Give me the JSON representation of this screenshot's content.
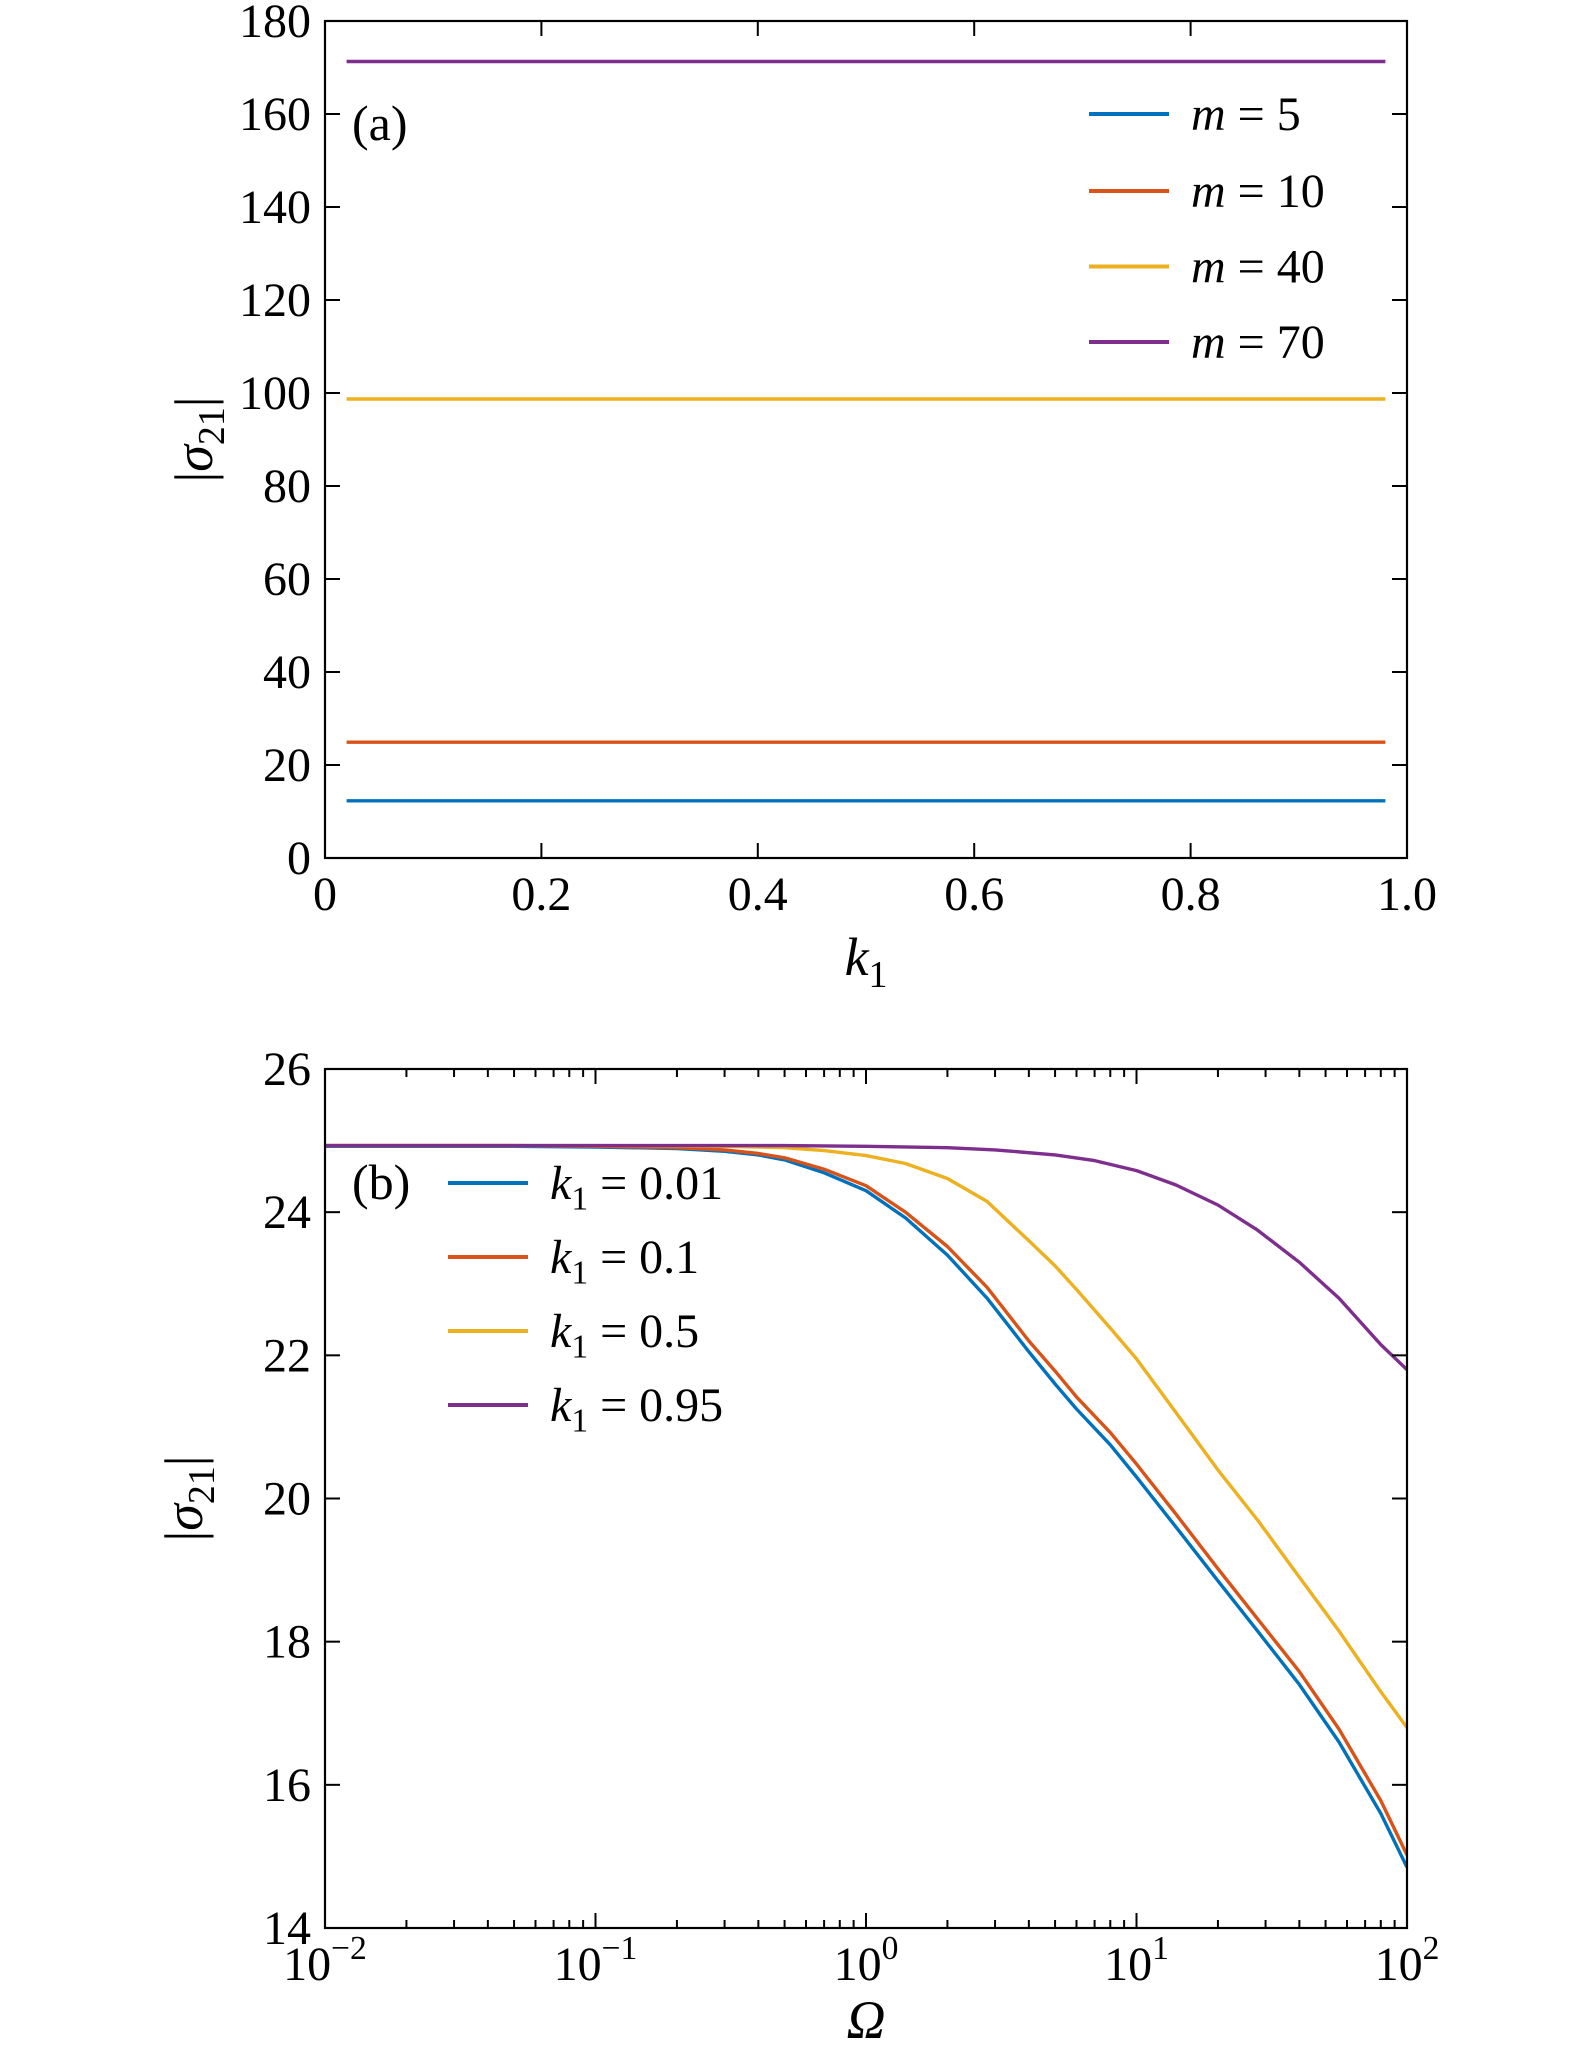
{
  "page": {
    "background": "#ffffff"
  },
  "chart_data": [
    {
      "id": "a",
      "type": "line",
      "panel_label": "(a)",
      "x_axis": {
        "scale": "linear",
        "min": 0,
        "max": 1.0,
        "ticks": [
          {
            "v": 0,
            "label": "0"
          },
          {
            "v": 0.2,
            "label": "0.2"
          },
          {
            "v": 0.4,
            "label": "0.4"
          },
          {
            "v": 0.6,
            "label": "0.6"
          },
          {
            "v": 0.8,
            "label": "0.8"
          },
          {
            "v": 1.0,
            "label": "1.0"
          }
        ],
        "label_parts": [
          {
            "t": "k",
            "i": 1
          },
          {
            "t": "1",
            "sub": 1
          }
        ]
      },
      "y_axis": {
        "scale": "linear",
        "min": 0,
        "max": 180,
        "ticks": [
          {
            "v": 0,
            "label": "0"
          },
          {
            "v": 20,
            "label": "20"
          },
          {
            "v": 40,
            "label": "40"
          },
          {
            "v": 60,
            "label": "60"
          },
          {
            "v": 80,
            "label": "80"
          },
          {
            "v": 100,
            "label": "100"
          },
          {
            "v": 120,
            "label": "120"
          },
          {
            "v": 140,
            "label": "140"
          },
          {
            "v": 160,
            "label": "160"
          },
          {
            "v": 180,
            "label": "180"
          }
        ],
        "label_parts": [
          {
            "t": "|"
          },
          {
            "t": "σ",
            "i": 1
          },
          {
            "t": "21",
            "sub": 1
          },
          {
            "t": "|"
          }
        ]
      },
      "grid": false,
      "legend": {
        "anchor": "inside-top-right"
      },
      "series": [
        {
          "label_parts": [
            {
              "t": "m",
              "i": 1
            },
            {
              "t": " = 5"
            }
          ],
          "color": "#0072BD",
          "points": [
            [
              0.02,
              12.3
            ],
            [
              0.98,
              12.3
            ]
          ]
        },
        {
          "label_parts": [
            {
              "t": "m",
              "i": 1
            },
            {
              "t": " = 10"
            }
          ],
          "color": "#D95319",
          "points": [
            [
              0.02,
              24.9
            ],
            [
              0.98,
              24.9
            ]
          ]
        },
        {
          "label_parts": [
            {
              "t": "m",
              "i": 1
            },
            {
              "t": " = 40"
            }
          ],
          "color": "#EDB120",
          "points": [
            [
              0.02,
              98.7
            ],
            [
              0.98,
              98.7
            ]
          ]
        },
        {
          "label_parts": [
            {
              "t": "m",
              "i": 1
            },
            {
              "t": " = 70"
            }
          ],
          "color": "#7E2F8E",
          "points": [
            [
              0.02,
              171.3
            ],
            [
              0.98,
              171.3
            ]
          ]
        }
      ]
    },
    {
      "id": "b",
      "type": "line",
      "panel_label": "(b)",
      "x_axis": {
        "scale": "log",
        "min": 0.01,
        "max": 100,
        "ticks": [
          {
            "v": 0.01,
            "label_parts": [
              {
                "t": "10"
              },
              {
                "t": "−2",
                "sup": 1
              }
            ]
          },
          {
            "v": 0.1,
            "label_parts": [
              {
                "t": "10"
              },
              {
                "t": "−1",
                "sup": 1
              }
            ]
          },
          {
            "v": 1,
            "label_parts": [
              {
                "t": "10"
              },
              {
                "t": "0",
                "sup": 1
              }
            ]
          },
          {
            "v": 10,
            "label_parts": [
              {
                "t": "10"
              },
              {
                "t": "1",
                "sup": 1
              }
            ]
          },
          {
            "v": 100,
            "label_parts": [
              {
                "t": "10"
              },
              {
                "t": "2",
                "sup": 1
              }
            ]
          }
        ],
        "label_parts": [
          {
            "t": "Ω",
            "i": 1
          }
        ]
      },
      "y_axis": {
        "scale": "linear",
        "min": 14,
        "max": 26,
        "ticks": [
          {
            "v": 14,
            "label": "14"
          },
          {
            "v": 16,
            "label": "16"
          },
          {
            "v": 18,
            "label": "18"
          },
          {
            "v": 20,
            "label": "20"
          },
          {
            "v": 22,
            "label": "22"
          },
          {
            "v": 24,
            "label": "24"
          },
          {
            "v": 26,
            "label": "26"
          }
        ],
        "label_parts": [
          {
            "t": "|"
          },
          {
            "t": "σ",
            "i": 1
          },
          {
            "t": "21",
            "sub": 1
          },
          {
            "t": "|"
          }
        ]
      },
      "grid": false,
      "legend": {
        "anchor": "inside-top-left"
      },
      "series": [
        {
          "label_parts": [
            {
              "t": "k",
              "i": 1
            },
            {
              "t": "1",
              "sub": 1
            },
            {
              "t": " = 0.01"
            }
          ],
          "color": "#0072BD",
          "points": [
            [
              0.01,
              24.92
            ],
            [
              0.05,
              24.92
            ],
            [
              0.1,
              24.91
            ],
            [
              0.2,
              24.89
            ],
            [
              0.3,
              24.85
            ],
            [
              0.4,
              24.8
            ],
            [
              0.5,
              24.73
            ],
            [
              0.7,
              24.55
            ],
            [
              1.0,
              24.3
            ],
            [
              1.4,
              23.92
            ],
            [
              2.0,
              23.4
            ],
            [
              2.8,
              22.8
            ],
            [
              4.0,
              22.05
            ],
            [
              5.0,
              21.6
            ],
            [
              6.0,
              21.25
            ],
            [
              8.0,
              20.75
            ],
            [
              10,
              20.3
            ],
            [
              14,
              19.6
            ],
            [
              20,
              18.85
            ],
            [
              28,
              18.15
            ],
            [
              40,
              17.4
            ],
            [
              56,
              16.6
            ],
            [
              80,
              15.6
            ],
            [
              100,
              14.85
            ]
          ]
        },
        {
          "label_parts": [
            {
              "t": "k",
              "i": 1
            },
            {
              "t": "1",
              "sub": 1
            },
            {
              "t": " = 0.1"
            }
          ],
          "color": "#D95319",
          "points": [
            [
              0.01,
              24.93
            ],
            [
              0.05,
              24.93
            ],
            [
              0.1,
              24.92
            ],
            [
              0.2,
              24.9
            ],
            [
              0.3,
              24.87
            ],
            [
              0.4,
              24.82
            ],
            [
              0.5,
              24.76
            ],
            [
              0.7,
              24.6
            ],
            [
              1.0,
              24.37
            ],
            [
              1.4,
              24.0
            ],
            [
              2.0,
              23.52
            ],
            [
              2.8,
              22.95
            ],
            [
              4.0,
              22.2
            ],
            [
              5.0,
              21.78
            ],
            [
              6.0,
              21.42
            ],
            [
              8.0,
              20.92
            ],
            [
              10,
              20.48
            ],
            [
              14,
              19.78
            ],
            [
              20,
              19.02
            ],
            [
              28,
              18.32
            ],
            [
              40,
              17.58
            ],
            [
              56,
              16.78
            ],
            [
              80,
              15.78
            ],
            [
              100,
              15.02
            ]
          ]
        },
        {
          "label_parts": [
            {
              "t": "k",
              "i": 1
            },
            {
              "t": "1",
              "sub": 1
            },
            {
              "t": " = 0.5"
            }
          ],
          "color": "#EDB120",
          "points": [
            [
              0.01,
              24.93
            ],
            [
              0.1,
              24.93
            ],
            [
              0.3,
              24.92
            ],
            [
              0.5,
              24.9
            ],
            [
              0.7,
              24.86
            ],
            [
              1.0,
              24.79
            ],
            [
              1.4,
              24.68
            ],
            [
              2.0,
              24.47
            ],
            [
              2.8,
              24.15
            ],
            [
              4.0,
              23.6
            ],
            [
              5.0,
              23.25
            ],
            [
              6.0,
              22.92
            ],
            [
              8.0,
              22.38
            ],
            [
              10,
              21.95
            ],
            [
              14,
              21.2
            ],
            [
              20,
              20.4
            ],
            [
              28,
              19.7
            ],
            [
              40,
              18.9
            ],
            [
              56,
              18.15
            ],
            [
              80,
              17.3
            ],
            [
              100,
              16.8
            ]
          ]
        },
        {
          "label_parts": [
            {
              "t": "k",
              "i": 1
            },
            {
              "t": "1",
              "sub": 1
            },
            {
              "t": " = 0.95"
            }
          ],
          "color": "#7E2F8E",
          "points": [
            [
              0.01,
              24.93
            ],
            [
              0.5,
              24.93
            ],
            [
              1.0,
              24.92
            ],
            [
              2.0,
              24.9
            ],
            [
              3.0,
              24.87
            ],
            [
              5.0,
              24.8
            ],
            [
              7.0,
              24.72
            ],
            [
              10,
              24.58
            ],
            [
              14,
              24.38
            ],
            [
              20,
              24.1
            ],
            [
              28,
              23.75
            ],
            [
              40,
              23.3
            ],
            [
              56,
              22.8
            ],
            [
              80,
              22.15
            ],
            [
              100,
              21.8
            ]
          ]
        }
      ]
    }
  ]
}
